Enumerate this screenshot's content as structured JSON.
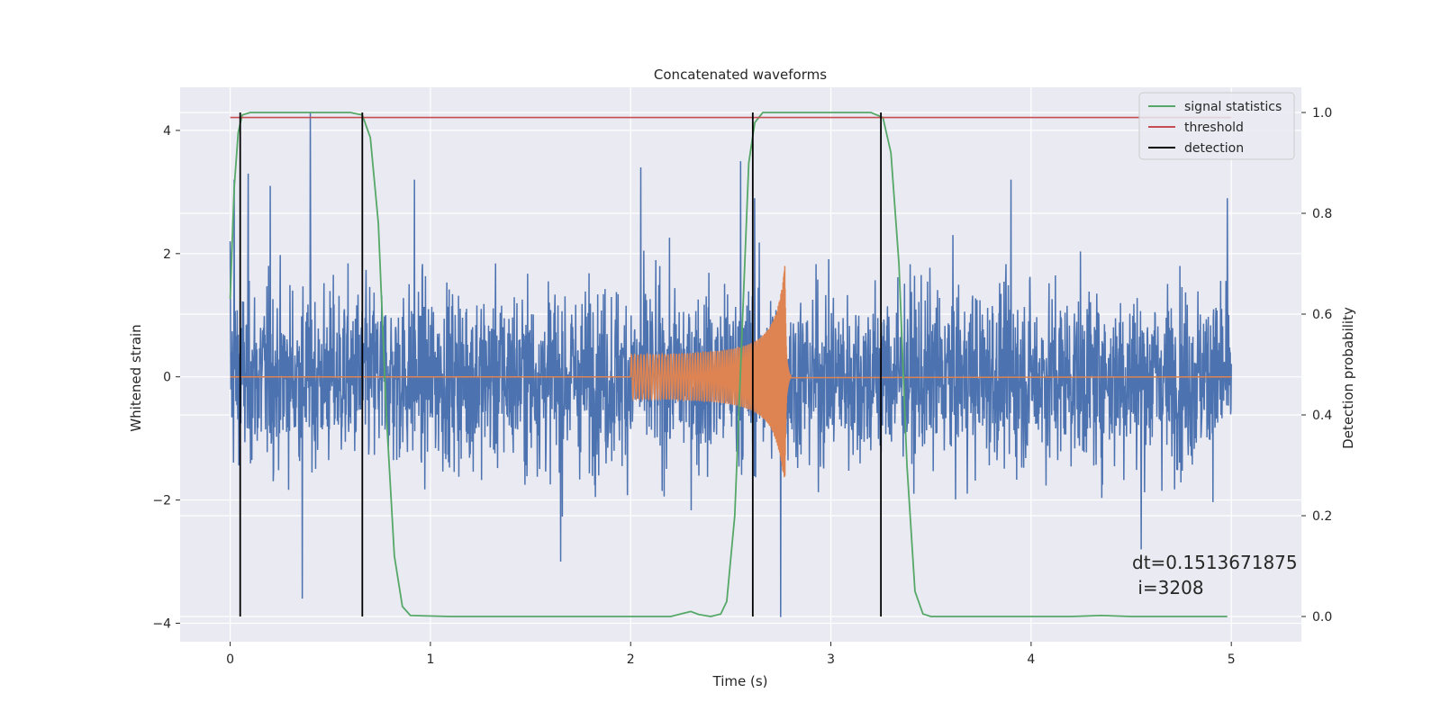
{
  "chart_data": {
    "type": "line",
    "title": "Concatenated waveforms",
    "xlabel": "Time (s)",
    "ylabel_left": "Whitened strain",
    "ylabel_right": "Detection probability",
    "xlim": [
      -0.25,
      5.35
    ],
    "ylim_left": [
      -4.3,
      4.7
    ],
    "ylim_right": [
      -0.05,
      1.05
    ],
    "x_ticks": [
      0,
      1,
      2,
      3,
      4,
      5
    ],
    "x_tick_labels": [
      "0",
      "1",
      "2",
      "3",
      "4",
      "5"
    ],
    "y_ticks_left": [
      -4,
      -2,
      0,
      2,
      4
    ],
    "y_tick_labels_left": [
      "−4",
      "−2",
      "0",
      "2",
      "4"
    ],
    "y_ticks_right": [
      0.0,
      0.2,
      0.4,
      0.6,
      0.8,
      1.0
    ],
    "y_tick_labels_right": [
      "0.0",
      "0.2",
      "0.4",
      "0.6",
      "0.8",
      "1.0"
    ],
    "grid": true,
    "legend_position": "upper-right",
    "legend": [
      {
        "label": "signal statistics",
        "color": "#55a868"
      },
      {
        "label": "threshold",
        "color": "#c44e52"
      },
      {
        "label": "detection",
        "color": "#000000"
      }
    ],
    "colors": {
      "plot_background": "#eaeaf2",
      "grid": "#ffffff",
      "strain": "#4c72b0",
      "template": "#dd8452",
      "signal_statistics": "#55a868",
      "threshold": "#c44e52",
      "detection": "#000000"
    },
    "strain_series": {
      "axis": "left",
      "x_range": [
        0,
        5
      ],
      "typical_amplitude": 1.0,
      "peak_values": [
        {
          "x": 0.0,
          "y": 2.2
        },
        {
          "x": 0.02,
          "y": 3.2
        },
        {
          "x": 0.09,
          "y": 3.3
        },
        {
          "x": 0.2,
          "y": 3.1
        },
        {
          "x": 0.4,
          "y": 4.3
        },
        {
          "x": 0.36,
          "y": -3.6
        },
        {
          "x": 0.92,
          "y": 3.2
        },
        {
          "x": 1.65,
          "y": -3.0
        },
        {
          "x": 2.05,
          "y": 3.4
        },
        {
          "x": 2.55,
          "y": 3.5
        },
        {
          "x": 2.62,
          "y": 2.9
        },
        {
          "x": 2.75,
          "y": -3.9
        },
        {
          "x": 3.9,
          "y": 3.2
        },
        {
          "x": 4.55,
          "y": -2.8
        },
        {
          "x": 4.98,
          "y": 2.9
        }
      ]
    },
    "template_series": {
      "axis": "left",
      "zero_until": 2.0,
      "chirp_start": 2.0,
      "chirp_merger": 2.77,
      "amplitude_start": 0.35,
      "amplitude_peak": 1.8,
      "ringdown_end": 2.8,
      "zero_after_until": 5.0
    },
    "signal_statistics": {
      "axis": "right",
      "points": [
        [
          0.0,
          0.63
        ],
        [
          0.02,
          0.85
        ],
        [
          0.04,
          0.96
        ],
        [
          0.06,
          0.995
        ],
        [
          0.1,
          1.0
        ],
        [
          0.6,
          1.0
        ],
        [
          0.66,
          0.995
        ],
        [
          0.7,
          0.95
        ],
        [
          0.74,
          0.78
        ],
        [
          0.78,
          0.4
        ],
        [
          0.82,
          0.12
        ],
        [
          0.86,
          0.02
        ],
        [
          0.9,
          0.002
        ],
        [
          1.1,
          0.0
        ],
        [
          1.3,
          0.0
        ],
        [
          2.2,
          0.0
        ],
        [
          2.26,
          0.006
        ],
        [
          2.3,
          0.01
        ],
        [
          2.34,
          0.004
        ],
        [
          2.4,
          0.0
        ],
        [
          2.45,
          0.005
        ],
        [
          2.48,
          0.03
        ],
        [
          2.52,
          0.2
        ],
        [
          2.56,
          0.6
        ],
        [
          2.59,
          0.9
        ],
        [
          2.62,
          0.98
        ],
        [
          2.66,
          1.0
        ],
        [
          3.2,
          1.0
        ],
        [
          3.26,
          0.99
        ],
        [
          3.3,
          0.92
        ],
        [
          3.34,
          0.7
        ],
        [
          3.38,
          0.3
        ],
        [
          3.42,
          0.05
        ],
        [
          3.46,
          0.005
        ],
        [
          3.5,
          0.0
        ],
        [
          4.2,
          0.0
        ],
        [
          4.35,
          0.002
        ],
        [
          4.5,
          0.0
        ],
        [
          4.98,
          0.0
        ]
      ]
    },
    "threshold": {
      "axis": "right",
      "value": 0.99,
      "x_range": [
        0,
        5
      ]
    },
    "detections": {
      "axis": "right",
      "x": [
        0.05,
        0.66,
        2.61,
        3.25
      ],
      "y_range": [
        0.0,
        1.0
      ]
    },
    "annotation_lines": [
      "dt=0.1513671875",
      " i=3208"
    ]
  }
}
